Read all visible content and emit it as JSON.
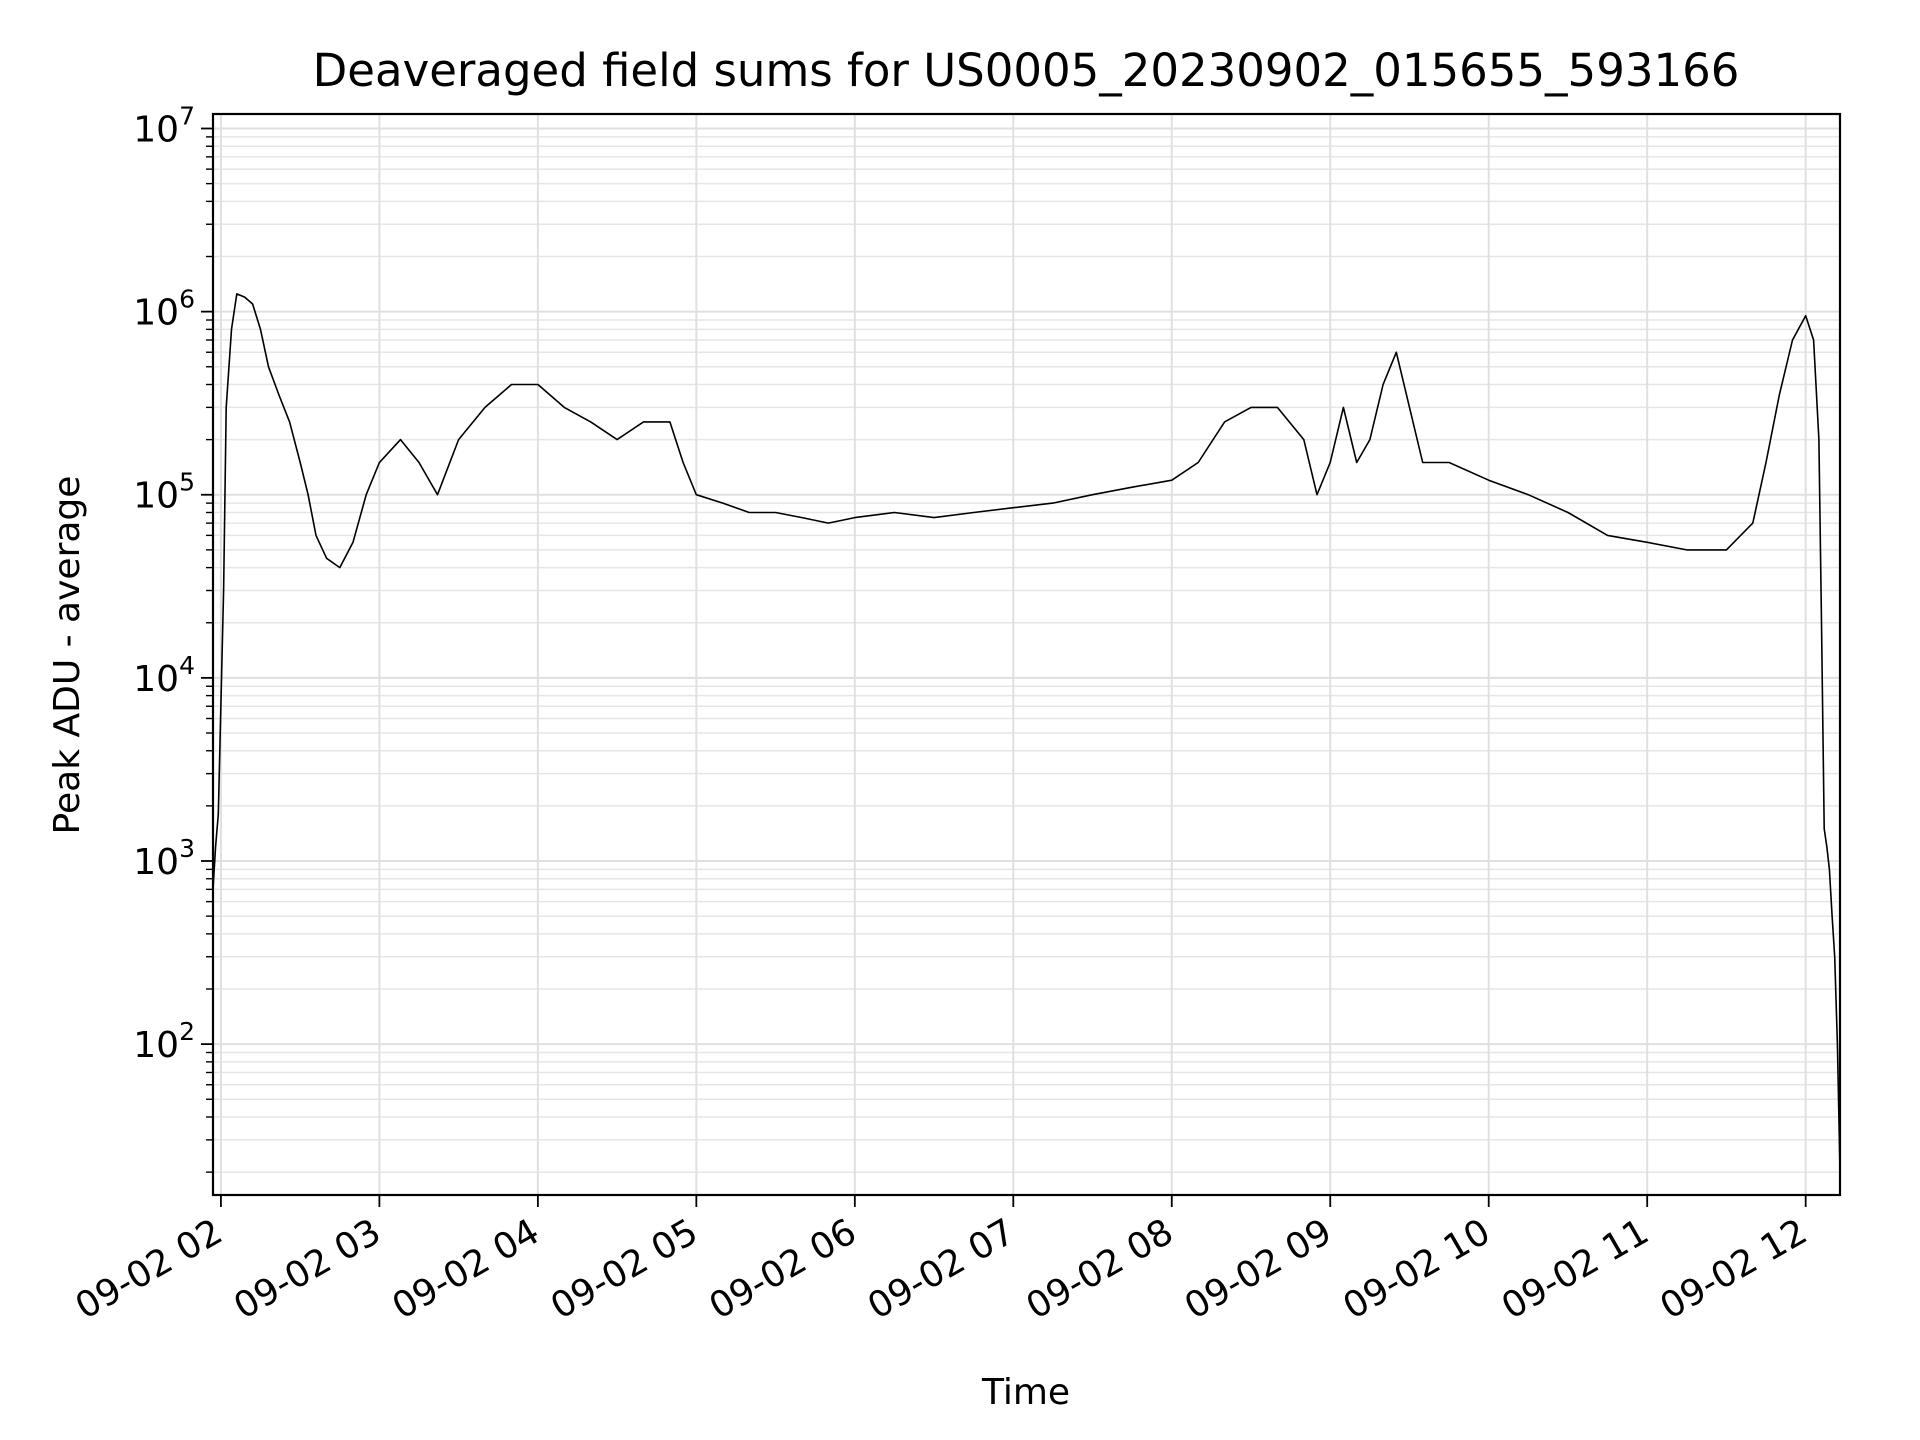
{
  "chart_data": {
    "type": "line",
    "title": "Deaveraged field sums for US0005_20230902_015655_593166",
    "xlabel": "Time",
    "ylabel": "Peak ADU - average",
    "y_scale": "log",
    "ylim": [
      15,
      12000000
    ],
    "y_ticks": [
      {
        "base": "10",
        "exp": "2",
        "value": 100
      },
      {
        "base": "10",
        "exp": "3",
        "value": 1000
      },
      {
        "base": "10",
        "exp": "4",
        "value": 10000
      },
      {
        "base": "10",
        "exp": "5",
        "value": 100000
      },
      {
        "base": "10",
        "exp": "6",
        "value": 1000000
      },
      {
        "base": "10",
        "exp": "7",
        "value": 10000000
      }
    ],
    "xlim": [
      "2023-09-02 01:57",
      "2023-09-02 12:13"
    ],
    "x_ticks": [
      {
        "label": "09-02 02",
        "time": "2023-09-02 02:00"
      },
      {
        "label": "09-02 03",
        "time": "2023-09-02 03:00"
      },
      {
        "label": "09-02 04",
        "time": "2023-09-02 04:00"
      },
      {
        "label": "09-02 05",
        "time": "2023-09-02 05:00"
      },
      {
        "label": "09-02 06",
        "time": "2023-09-02 06:00"
      },
      {
        "label": "09-02 07",
        "time": "2023-09-02 07:00"
      },
      {
        "label": "09-02 08",
        "time": "2023-09-02 08:00"
      },
      {
        "label": "09-02 09",
        "time": "2023-09-02 09:00"
      },
      {
        "label": "09-02 10",
        "time": "2023-09-02 10:00"
      },
      {
        "label": "09-02 11",
        "time": "2023-09-02 11:00"
      },
      {
        "label": "09-02 12",
        "time": "2023-09-02 12:00"
      }
    ],
    "grid": true,
    "series": [
      {
        "color": "#000000",
        "points": [
          [
            "2023-09-02 01:57",
            700
          ],
          [
            "2023-09-02 01:58",
            1200
          ],
          [
            "2023-09-02 01:59",
            1800
          ],
          [
            "2023-09-02 02:01",
            30000
          ],
          [
            "2023-09-02 02:02",
            300000
          ],
          [
            "2023-09-02 02:04",
            800000
          ],
          [
            "2023-09-02 02:06",
            1250000
          ],
          [
            "2023-09-02 02:09",
            1200000
          ],
          [
            "2023-09-02 02:12",
            1100000
          ],
          [
            "2023-09-02 02:15",
            800000
          ],
          [
            "2023-09-02 02:18",
            500000
          ],
          [
            "2023-09-02 02:22",
            350000
          ],
          [
            "2023-09-02 02:26",
            250000
          ],
          [
            "2023-09-02 02:30",
            150000
          ],
          [
            "2023-09-02 02:33",
            100000
          ],
          [
            "2023-09-02 02:36",
            60000
          ],
          [
            "2023-09-02 02:40",
            45000
          ],
          [
            "2023-09-02 02:45",
            40000
          ],
          [
            "2023-09-02 02:50",
            55000
          ],
          [
            "2023-09-02 02:55",
            100000
          ],
          [
            "2023-09-02 03:00",
            150000
          ],
          [
            "2023-09-02 03:08",
            200000
          ],
          [
            "2023-09-02 03:15",
            150000
          ],
          [
            "2023-09-02 03:22",
            100000
          ],
          [
            "2023-09-02 03:30",
            200000
          ],
          [
            "2023-09-02 03:40",
            300000
          ],
          [
            "2023-09-02 03:50",
            400000
          ],
          [
            "2023-09-02 04:00",
            400000
          ],
          [
            "2023-09-02 04:10",
            300000
          ],
          [
            "2023-09-02 04:20",
            250000
          ],
          [
            "2023-09-02 04:30",
            200000
          ],
          [
            "2023-09-02 04:40",
            250000
          ],
          [
            "2023-09-02 04:50",
            250000
          ],
          [
            "2023-09-02 04:55",
            150000
          ],
          [
            "2023-09-02 05:00",
            100000
          ],
          [
            "2023-09-02 05:10",
            90000
          ],
          [
            "2023-09-02 05:20",
            80000
          ],
          [
            "2023-09-02 05:30",
            80000
          ],
          [
            "2023-09-02 05:40",
            75000
          ],
          [
            "2023-09-02 05:50",
            70000
          ],
          [
            "2023-09-02 06:00",
            75000
          ],
          [
            "2023-09-02 06:15",
            80000
          ],
          [
            "2023-09-02 06:30",
            75000
          ],
          [
            "2023-09-02 06:45",
            80000
          ],
          [
            "2023-09-02 07:00",
            85000
          ],
          [
            "2023-09-02 07:15",
            90000
          ],
          [
            "2023-09-02 07:30",
            100000
          ],
          [
            "2023-09-02 07:45",
            110000
          ],
          [
            "2023-09-02 08:00",
            120000
          ],
          [
            "2023-09-02 08:10",
            150000
          ],
          [
            "2023-09-02 08:20",
            250000
          ],
          [
            "2023-09-02 08:30",
            300000
          ],
          [
            "2023-09-02 08:40",
            300000
          ],
          [
            "2023-09-02 08:50",
            200000
          ],
          [
            "2023-09-02 08:55",
            100000
          ],
          [
            "2023-09-02 09:00",
            150000
          ],
          [
            "2023-09-02 09:05",
            300000
          ],
          [
            "2023-09-02 09:10",
            150000
          ],
          [
            "2023-09-02 09:15",
            200000
          ],
          [
            "2023-09-02 09:20",
            400000
          ],
          [
            "2023-09-02 09:25",
            600000
          ],
          [
            "2023-09-02 09:30",
            300000
          ],
          [
            "2023-09-02 09:35",
            150000
          ],
          [
            "2023-09-02 09:45",
            150000
          ],
          [
            "2023-09-02 10:00",
            120000
          ],
          [
            "2023-09-02 10:15",
            100000
          ],
          [
            "2023-09-02 10:30",
            80000
          ],
          [
            "2023-09-02 10:45",
            60000
          ],
          [
            "2023-09-02 11:00",
            55000
          ],
          [
            "2023-09-02 11:15",
            50000
          ],
          [
            "2023-09-02 11:30",
            50000
          ],
          [
            "2023-09-02 11:40",
            70000
          ],
          [
            "2023-09-02 11:45",
            150000
          ],
          [
            "2023-09-02 11:50",
            350000
          ],
          [
            "2023-09-02 11:55",
            700000
          ],
          [
            "2023-09-02 12:00",
            950000
          ],
          [
            "2023-09-02 12:03",
            700000
          ],
          [
            "2023-09-02 12:05",
            200000
          ],
          [
            "2023-09-02 12:06",
            20000
          ],
          [
            "2023-09-02 12:07",
            1500
          ],
          [
            "2023-09-02 12:08",
            1200
          ],
          [
            "2023-09-02 12:09",
            900
          ],
          [
            "2023-09-02 12:10",
            500
          ],
          [
            "2023-09-02 12:11",
            300
          ],
          [
            "2023-09-02 12:12",
            100
          ],
          [
            "2023-09-02 12:13",
            20
          ]
        ]
      }
    ]
  }
}
